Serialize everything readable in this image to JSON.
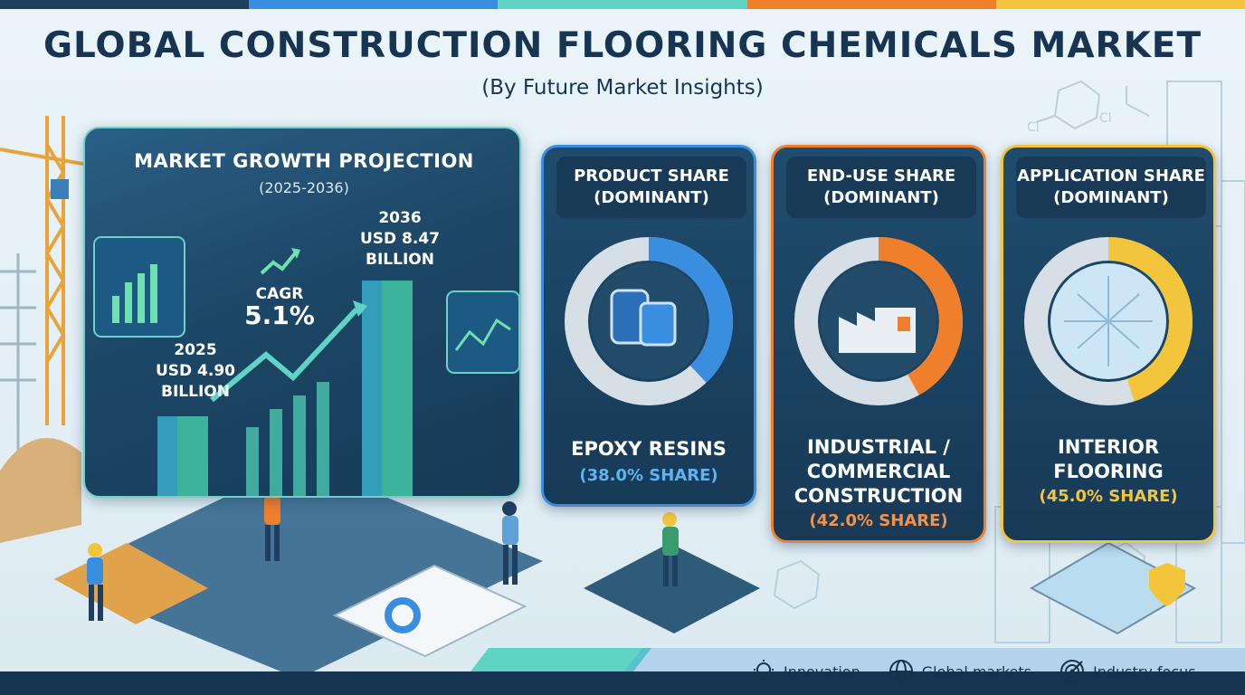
{
  "header": {
    "title": "GLOBAL CONSTRUCTION FLOORING CHEMICALS MARKET",
    "subtitle": "(By Future Market Insights)"
  },
  "growth": {
    "heading": "MARKET GROWTH PROJECTION",
    "period": "(2025-2036)",
    "start": {
      "year": "2025",
      "line1": "USD 4.90",
      "line2": "BILLION"
    },
    "end": {
      "year": "2036",
      "line1": "USD 8.47",
      "line2": "BILLION"
    },
    "cagr": {
      "label": "CAGR",
      "value": "5.1%"
    }
  },
  "cards": [
    {
      "header_line1": "PRODUCT SHARE",
      "header_line2": "(DOMINANT)",
      "segment": "EPOXY RESINS",
      "share_text": "(38.0% SHARE)",
      "share_value": 38.0,
      "color": "#3a8ee0"
    },
    {
      "header_line1": "END-USE SHARE",
      "header_line2": "(DOMINANT)",
      "segment_line1": "INDUSTRIAL /",
      "segment_line2": "COMMERCIAL",
      "segment_line3": "CONSTRUCTION",
      "share_text": "(42.0% SHARE)",
      "share_value": 42.0,
      "color": "#f07f2c"
    },
    {
      "header_line1": "APPLICATION SHARE",
      "header_line2": "(DOMINANT)",
      "segment_line1": "INTERIOR",
      "segment_line2": "FLOORING",
      "share_text": "(45.0% SHARE)",
      "share_value": 45.0,
      "color": "#f3c53a"
    }
  ],
  "footer": {
    "items": [
      {
        "label": "Innovation",
        "icon": "lightbulb-icon"
      },
      {
        "label": "Global markets",
        "icon": "globe-icon"
      },
      {
        "label": "Industry focus",
        "icon": "target-icon"
      }
    ]
  },
  "colors": {
    "title": "#173553",
    "panel": "#1f4c6d",
    "teal": "#5fd3c4",
    "blue": "#3a8ee0",
    "orange": "#f07f2c",
    "yellow": "#f3c53a"
  }
}
